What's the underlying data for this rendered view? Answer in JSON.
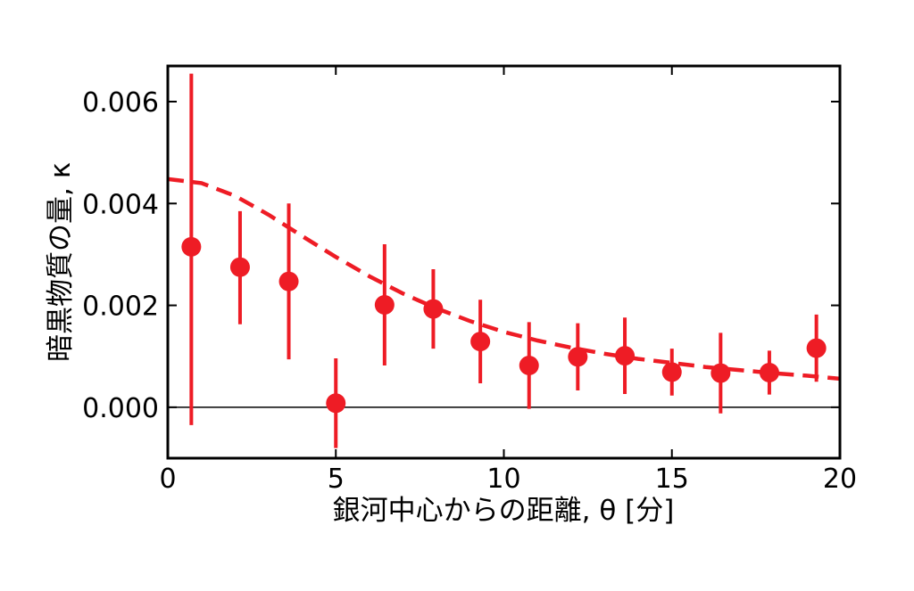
{
  "chart_data": {
    "type": "scatter",
    "xlabel": "銀河中心からの距離, θ [分]",
    "ylabel": "暗黒物質の量, κ",
    "xlim": [
      0,
      20
    ],
    "ylim": [
      -0.001,
      0.0067
    ],
    "xticks": [
      0,
      5,
      10,
      15,
      20
    ],
    "xtick_labels": [
      "0",
      "5",
      "10",
      "15",
      "20"
    ],
    "yticks": [
      0.0,
      0.002,
      0.004,
      0.006
    ],
    "ytick_labels": [
      "0.000",
      "0.002",
      "0.004",
      "0.006"
    ],
    "grid": false,
    "zero_line": true,
    "colors": {
      "points": "#ee1c25",
      "fit": "#ee1c25",
      "axes": "#000000"
    },
    "points": [
      {
        "x": 0.7,
        "y": 0.00315,
        "yerr_low": 0.0035,
        "yerr_high": 0.0034
      },
      {
        "x": 2.15,
        "y": 0.00275,
        "yerr_low": 0.00112,
        "yerr_high": 0.0011
      },
      {
        "x": 3.6,
        "y": 0.00247,
        "yerr_low": 0.00153,
        "yerr_high": 0.00153
      },
      {
        "x": 5.0,
        "y": 8e-05,
        "yerr_low": 0.00088,
        "yerr_high": 0.00088
      },
      {
        "x": 6.45,
        "y": 0.00201,
        "yerr_low": 0.00119,
        "yerr_high": 0.00119
      },
      {
        "x": 7.9,
        "y": 0.00193,
        "yerr_low": 0.00078,
        "yerr_high": 0.00078
      },
      {
        "x": 9.3,
        "y": 0.00129,
        "yerr_low": 0.00082,
        "yerr_high": 0.00082
      },
      {
        "x": 10.75,
        "y": 0.00082,
        "yerr_low": 0.00085,
        "yerr_high": 0.00085
      },
      {
        "x": 12.2,
        "y": 0.00099,
        "yerr_low": 0.00066,
        "yerr_high": 0.00066
      },
      {
        "x": 13.6,
        "y": 0.00101,
        "yerr_low": 0.00075,
        "yerr_high": 0.00075
      },
      {
        "x": 15.0,
        "y": 0.00069,
        "yerr_low": 0.00046,
        "yerr_high": 0.00046
      },
      {
        "x": 16.45,
        "y": 0.00067,
        "yerr_low": 0.00079,
        "yerr_high": 0.00079
      },
      {
        "x": 17.9,
        "y": 0.00068,
        "yerr_low": 0.00043,
        "yerr_high": 0.00043
      },
      {
        "x": 19.3,
        "y": 0.00116,
        "yerr_low": 0.00066,
        "yerr_high": 0.00066
      }
    ],
    "fit_curve": {
      "style": "dashed",
      "x": [
        0,
        1,
        2,
        3,
        4,
        5,
        6,
        7,
        8,
        9,
        10,
        11,
        12,
        13,
        14,
        15,
        16,
        17,
        18,
        19,
        20
      ],
      "y": [
        0.00448,
        0.0044,
        0.00415,
        0.00378,
        0.00336,
        0.00295,
        0.00257,
        0.00223,
        0.00194,
        0.00169,
        0.00148,
        0.00131,
        0.00117,
        0.00105,
        0.00095,
        0.00087,
        0.00079,
        0.00073,
        0.00067,
        0.00062,
        0.00056
      ]
    }
  }
}
